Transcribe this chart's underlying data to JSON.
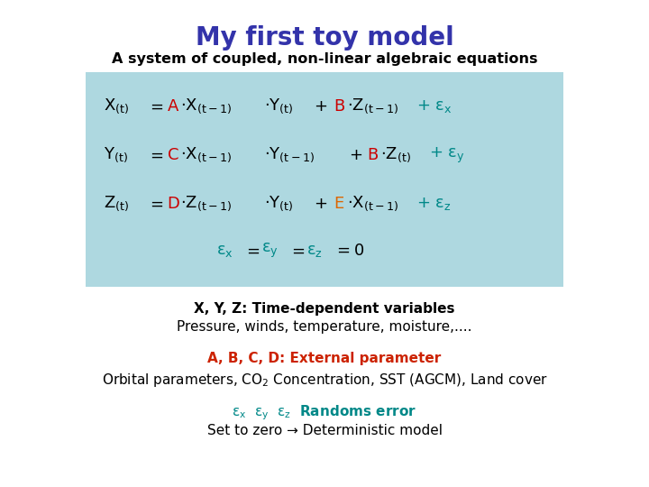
{
  "title": "My first toy model",
  "title_color": "#3333aa",
  "title_fontsize": 20,
  "subtitle": "A system of coupled, non-linear algebraic equations",
  "subtitle_color": "#000000",
  "subtitle_fontsize": 11.5,
  "box_color": "#aed8e0",
  "eq_color_black": "#000000",
  "eq_color_red": "#cc0000",
  "eq_color_teal": "#008888",
  "eq_color_orange": "#dd6600",
  "eq_fontsize": 13,
  "label1_bold": "X, Y, Z: Time-dependent variables",
  "label1_normal": "Pressure, winds, temperature, moisture,....",
  "label2_bold": "A, B, C, D: External parameter",
  "label2_color": "#cc2200",
  "label3_color": "#008888",
  "label_fontsize": 11,
  "background_color": "#ffffff"
}
